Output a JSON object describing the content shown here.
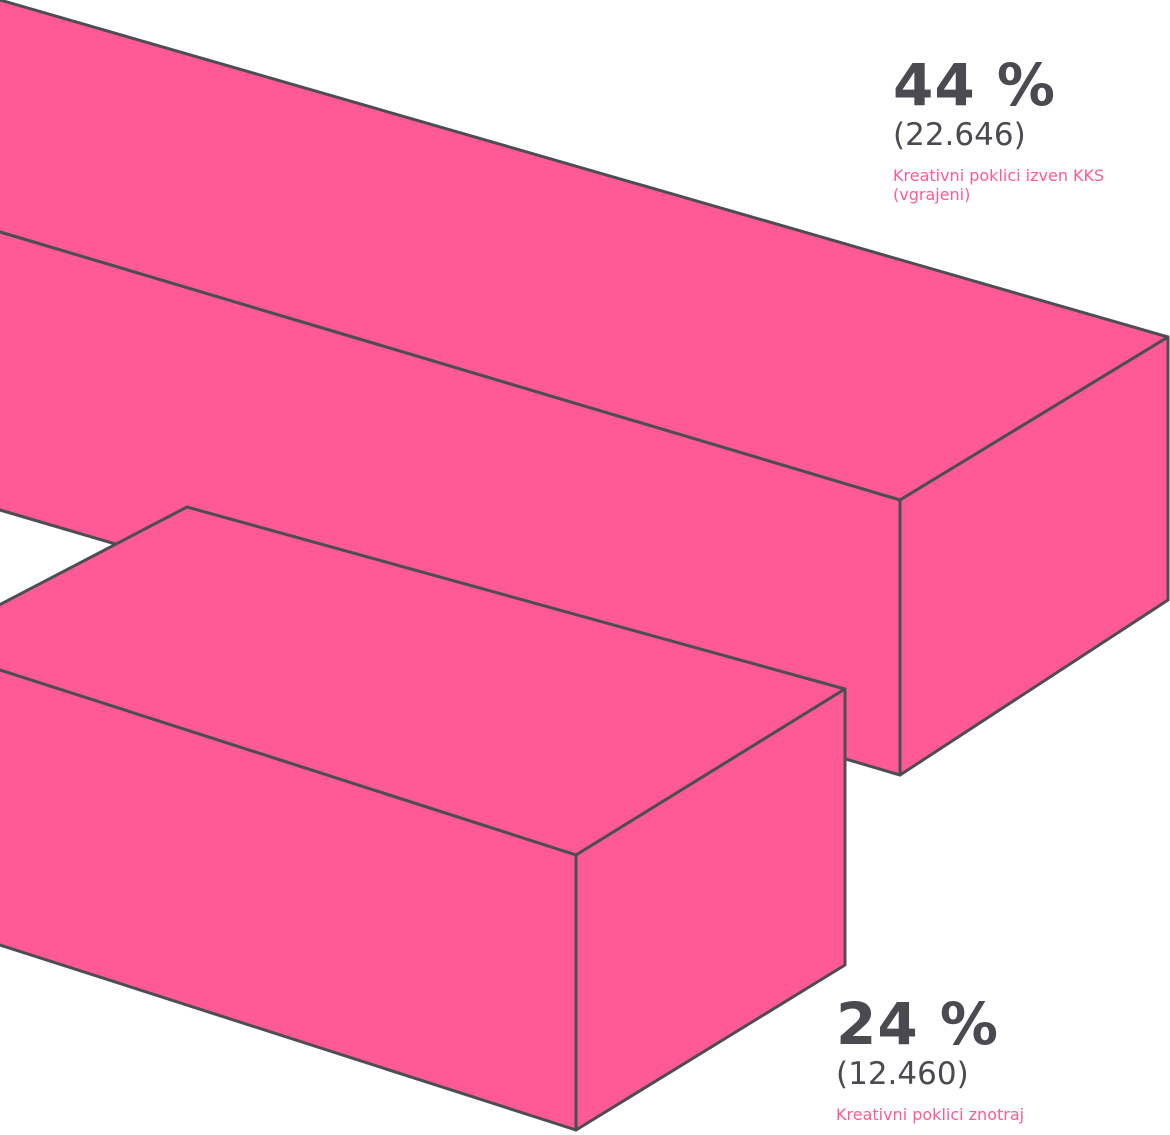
{
  "chart_data": {
    "type": "bar",
    "style": "3d-isometric",
    "series": [
      {
        "category": "Kreativni poklici izven KKS (vgrajeni)",
        "percent_label": "44 %",
        "count_label": "(22.646)",
        "percent": 44,
        "count": 22646
      },
      {
        "category": "Kreativni poklici znotraj",
        "percent_label": "24 %",
        "count_label": "(12.460)",
        "percent": 24,
        "count": 12460
      }
    ]
  },
  "colors": {
    "bar_fill": "#FF5A93",
    "bar_stroke": "#4D4D53",
    "value_text": "#4A4A50",
    "category_text": "#FF5A93",
    "background": "#FFFFFF"
  }
}
